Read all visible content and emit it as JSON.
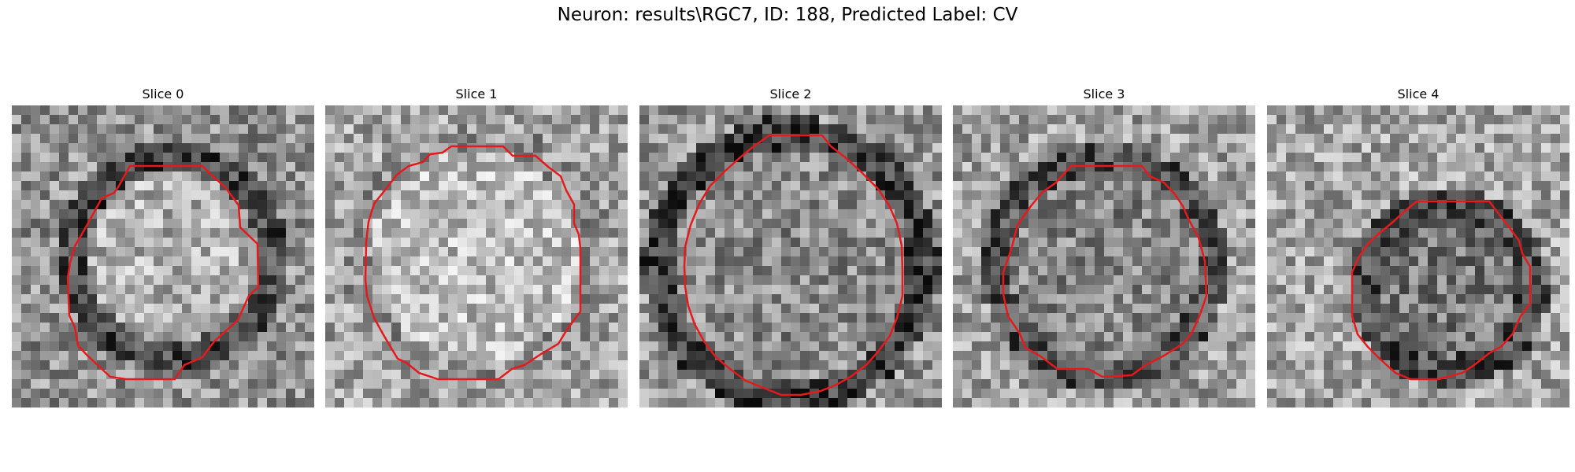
{
  "figure": {
    "title": "Neuron: results\\RGC7, ID: 188, Predicted Label: CV"
  },
  "panels": [
    {
      "title": "Slice 0"
    },
    {
      "title": "Slice 1"
    },
    {
      "title": "Slice 2"
    },
    {
      "title": "Slice 3"
    },
    {
      "title": "Slice 4"
    }
  ],
  "colors": {
    "contour": "#e41a1c",
    "colormap": "gray"
  }
}
